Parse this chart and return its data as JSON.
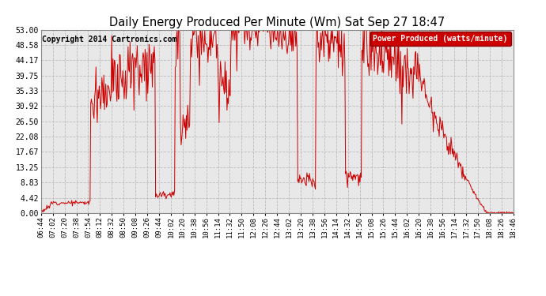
{
  "title": "Daily Energy Produced Per Minute (Wm) Sat Sep 27 18:47",
  "copyright": "Copyright 2014 Cartronics.com",
  "legend_label": "Power Produced (watts/minute)",
  "legend_bg": "#cc0000",
  "legend_fg": "#ffffff",
  "line_color": "#cc0000",
  "bg_color": "#ffffff",
  "plot_bg": "#e8e8e8",
  "grid_color": "#bbbbbb",
  "ylim": [
    0,
    53.0
  ],
  "yticks": [
    0.0,
    4.42,
    8.83,
    13.25,
    17.67,
    22.08,
    26.5,
    30.92,
    35.33,
    39.75,
    44.17,
    48.58,
    53.0
  ],
  "ytick_labels": [
    "0.00",
    "4.42",
    "8.83",
    "13.25",
    "17.67",
    "22.08",
    "26.50",
    "30.92",
    "35.33",
    "39.75",
    "44.17",
    "48.58",
    "53.00"
  ],
  "xtick_labels": [
    "06:44",
    "07:02",
    "07:20",
    "07:38",
    "07:54",
    "08:12",
    "08:32",
    "08:50",
    "09:08",
    "09:26",
    "09:44",
    "10:02",
    "10:20",
    "10:38",
    "10:56",
    "11:14",
    "11:32",
    "11:50",
    "12:08",
    "12:26",
    "12:44",
    "13:02",
    "13:20",
    "13:38",
    "13:56",
    "14:14",
    "14:32",
    "14:50",
    "15:08",
    "15:26",
    "15:44",
    "16:02",
    "16:20",
    "16:38",
    "16:56",
    "17:14",
    "17:32",
    "17:50",
    "18:08",
    "18:26",
    "18:46"
  ],
  "n_points": 722,
  "seed": 12
}
